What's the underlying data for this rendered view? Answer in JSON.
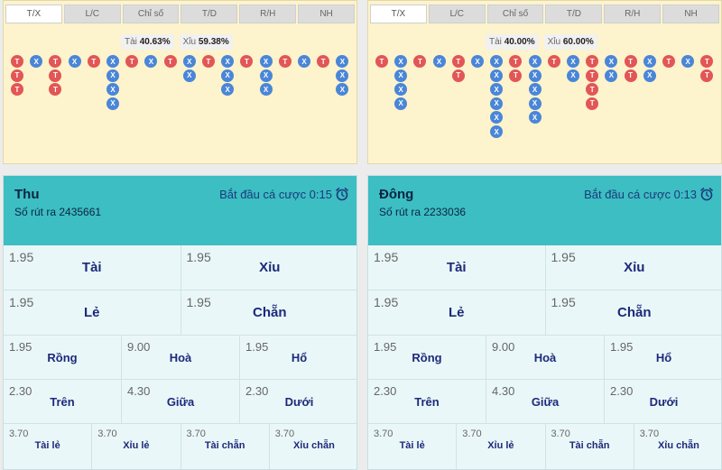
{
  "panels": [
    {
      "tabs": [
        "T/X",
        "L/C",
        "Chỉ số",
        "T/D",
        "R/H",
        "NH"
      ],
      "ratio_tai_label": "Tài",
      "ratio_tai_value": "40.63%",
      "ratio_xiu_label": "Xỉu",
      "ratio_xiu_value": "59.38%",
      "bead_columns": [
        [
          "T",
          "T",
          "T"
        ],
        [
          "X"
        ],
        [
          "T",
          "T",
          "T"
        ],
        [
          "X"
        ],
        [
          "T"
        ],
        [
          "X",
          "X",
          "X",
          "X"
        ],
        [
          "T"
        ],
        [
          "X"
        ],
        [
          "T"
        ],
        [
          "X",
          "X"
        ],
        [
          "T"
        ],
        [
          "X",
          "X",
          "X"
        ],
        [
          "T"
        ],
        [
          "X",
          "X",
          "X"
        ],
        [
          "T"
        ],
        [
          "X"
        ],
        [
          "T"
        ],
        [
          "X",
          "X",
          "X"
        ]
      ],
      "room_name": "Thu",
      "draw_no": "Số rút ra 2435661",
      "countdown": "Bắt đầu cá cược 0:15",
      "bets": [
        [
          {
            "odds": "1.95",
            "label": "Tài"
          },
          {
            "odds": "1.95",
            "label": "Xỉu"
          }
        ],
        [
          {
            "odds": "1.95",
            "label": "Lẻ"
          },
          {
            "odds": "1.95",
            "label": "Chẵn"
          }
        ],
        [
          {
            "odds": "1.95",
            "label": "Rồng"
          },
          {
            "odds": "9.00",
            "label": "Hoà"
          },
          {
            "odds": "1.95",
            "label": "Hổ"
          }
        ],
        [
          {
            "odds": "2.30",
            "label": "Trên"
          },
          {
            "odds": "4.30",
            "label": "Giữa"
          },
          {
            "odds": "2.30",
            "label": "Dưới"
          }
        ],
        [
          {
            "odds": "3.70",
            "label": "Tài lẻ"
          },
          {
            "odds": "3.70",
            "label": "Xỉu lẻ"
          },
          {
            "odds": "3.70",
            "label": "Tài chẵn"
          },
          {
            "odds": "3.70",
            "label": "Xỉu chẵn"
          }
        ]
      ]
    },
    {
      "tabs": [
        "T/X",
        "L/C",
        "Chỉ số",
        "T/D",
        "R/H",
        "NH"
      ],
      "ratio_tai_label": "Tài",
      "ratio_tai_value": "40.00%",
      "ratio_xiu_label": "Xỉu",
      "ratio_xiu_value": "60.00%",
      "bead_columns": [
        [
          "T"
        ],
        [
          "X",
          "X",
          "X",
          "X"
        ],
        [
          "T"
        ],
        [
          "X"
        ],
        [
          "T",
          "T"
        ],
        [
          "X"
        ],
        [
          "X",
          "X",
          "X",
          "X",
          "X",
          "X"
        ],
        [
          "T",
          "T"
        ],
        [
          "X",
          "X",
          "X",
          "X",
          "X"
        ],
        [
          "T"
        ],
        [
          "X",
          "X"
        ],
        [
          "T",
          "T",
          "T",
          "T"
        ],
        [
          "X",
          "X"
        ],
        [
          "T",
          "T"
        ],
        [
          "X",
          "X"
        ],
        [
          "T"
        ],
        [
          "X"
        ],
        [
          "T",
          "T"
        ]
      ],
      "room_name": "Đông",
      "draw_no": "Số rút ra 2233036",
      "countdown": "Bắt đầu cá cược 0:13",
      "bets": [
        [
          {
            "odds": "1.95",
            "label": "Tài"
          },
          {
            "odds": "1.95",
            "label": "Xỉu"
          }
        ],
        [
          {
            "odds": "1.95",
            "label": "Lẻ"
          },
          {
            "odds": "1.95",
            "label": "Chẵn"
          }
        ],
        [
          {
            "odds": "1.95",
            "label": "Rồng"
          },
          {
            "odds": "9.00",
            "label": "Hoà"
          },
          {
            "odds": "1.95",
            "label": "Hổ"
          }
        ],
        [
          {
            "odds": "2.30",
            "label": "Trên"
          },
          {
            "odds": "4.30",
            "label": "Giữa"
          },
          {
            "odds": "2.30",
            "label": "Dưới"
          }
        ],
        [
          {
            "odds": "3.70",
            "label": "Tài lẻ"
          },
          {
            "odds": "3.70",
            "label": "Xỉu lẻ"
          },
          {
            "odds": "3.70",
            "label": "Tài chẵn"
          },
          {
            "odds": "3.70",
            "label": "Xỉu chẵn"
          }
        ]
      ]
    }
  ],
  "colors": {
    "tai": "#e25656",
    "xiu": "#4a86d8",
    "header": "#3cbec3",
    "label": "#1d2a7a"
  }
}
